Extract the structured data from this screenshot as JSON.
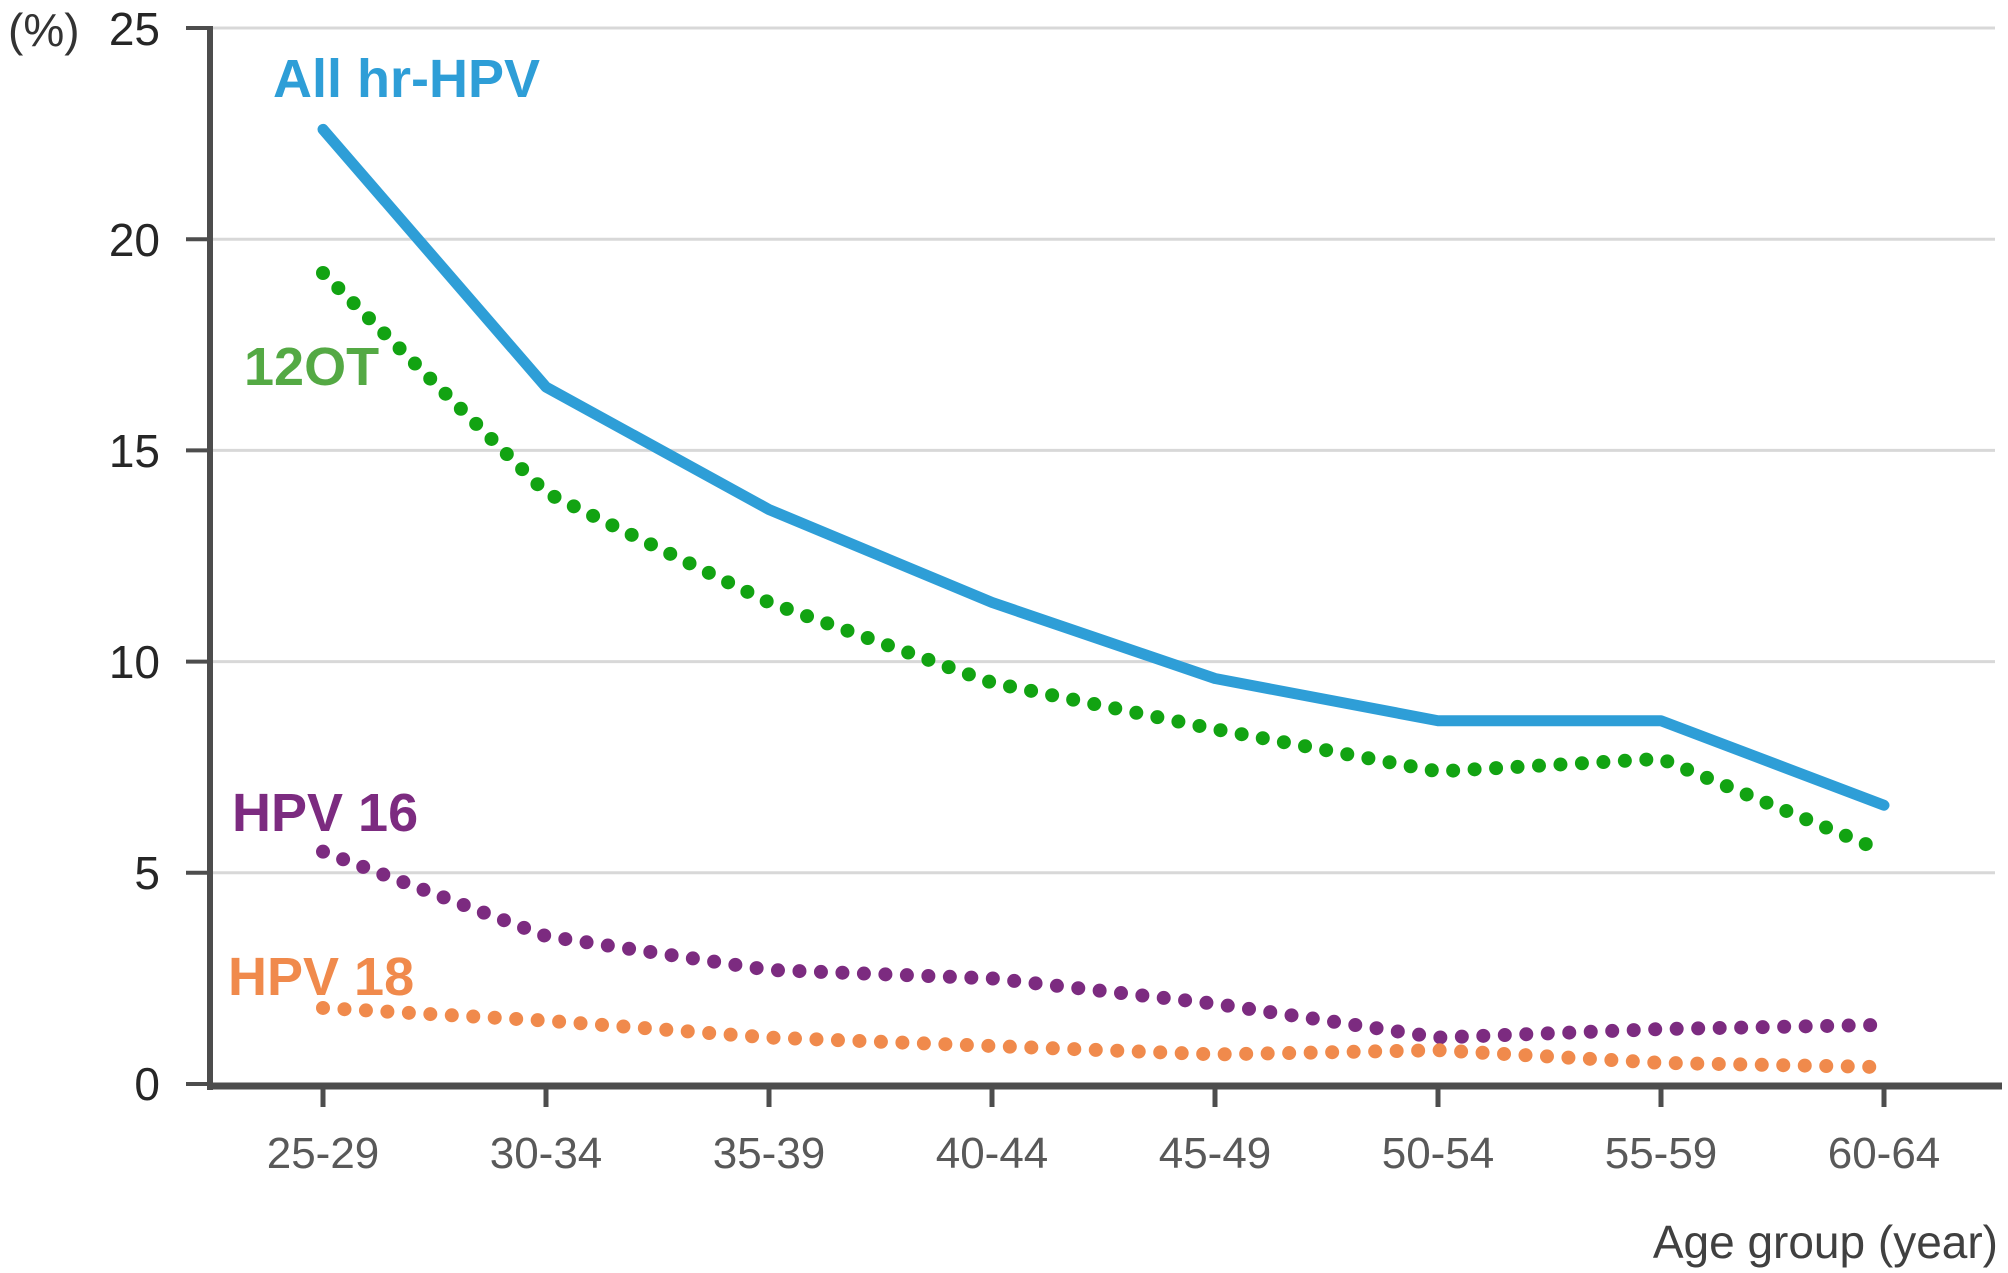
{
  "chart_data": {
    "type": "line",
    "title": "",
    "xlabel": "Age group (year)",
    "ylabel": "(%)",
    "ylim": [
      0,
      25
    ],
    "yticks": [
      0,
      5,
      10,
      15,
      20,
      25
    ],
    "grid": "horizontal",
    "legend_position": "inline-labels",
    "categories": [
      "25-29",
      "30-34",
      "35-39",
      "40-44",
      "45-49",
      "50-54",
      "55-59",
      "60-64"
    ],
    "series": [
      {
        "name": "All hr-HPV",
        "style": "solid",
        "color": "#2e9ed7",
        "label_color": "#2e9ed7",
        "values": [
          22.6,
          16.5,
          13.6,
          11.4,
          9.6,
          8.6,
          8.6,
          6.6
        ]
      },
      {
        "name": "12OT",
        "style": "dotted",
        "color": "#12a312",
        "label_color": "#54a944",
        "values": [
          19.2,
          14.0,
          11.4,
          9.5,
          8.4,
          7.4,
          7.7,
          5.5
        ]
      },
      {
        "name": "HPV 16",
        "style": "dotted",
        "color": "#7c2b80",
        "label_color": "#7c2b80",
        "values": [
          5.5,
          3.5,
          2.7,
          2.5,
          1.9,
          1.1,
          1.3,
          1.4
        ]
      },
      {
        "name": "HPV 18",
        "style": "dotted",
        "color": "#f08a4c",
        "label_color": "#f08a4c",
        "values": [
          1.8,
          1.5,
          1.1,
          0.9,
          0.7,
          0.8,
          0.5,
          0.4
        ]
      }
    ],
    "colors": {
      "axis": "#4d4d4d",
      "gridline": "#d8d8d8"
    }
  }
}
